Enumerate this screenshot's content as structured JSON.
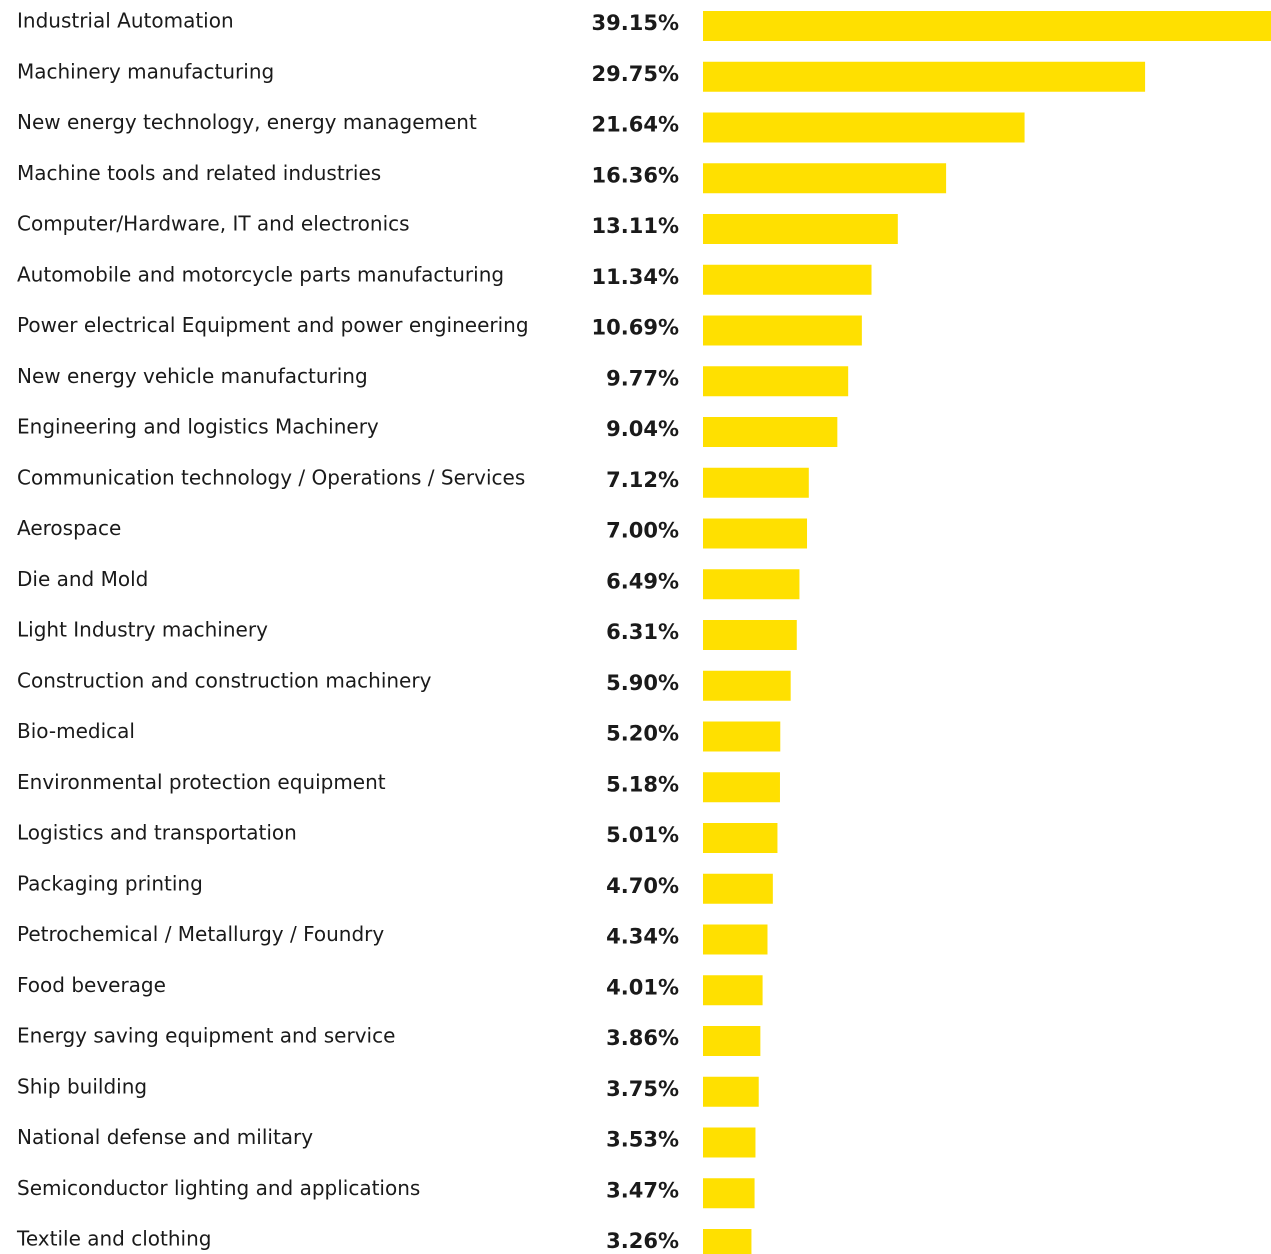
{
  "chart_data": {
    "type": "barh",
    "categories": [
      "Industrial Automation",
      "Machinery manufacturing",
      "New energy technology, energy management",
      "Machine tools and related industries",
      "Computer/Hardware, IT and electronics",
      "Automobile and motorcycle parts manufacturing",
      "Power electrical Equipment and power engineering",
      "New energy vehicle manufacturing",
      "Engineering and logistics Machinery",
      "Communication technology / Operations / Services",
      "Aerospace",
      "Die and Mold",
      "Light Industry machinery",
      "Construction and construction machinery",
      "Bio-medical",
      "Environmental protection equipment",
      "Logistics and transportation",
      "Packaging printing",
      "Petrochemical / Metallurgy / Foundry",
      "Food beverage",
      "Energy saving equipment and service",
      "Ship building",
      "National defense and military",
      "Semiconductor lighting and applications",
      "Textile and clothing"
    ],
    "values": [
      39.15,
      29.75,
      21.64,
      16.36,
      13.11,
      11.34,
      10.69,
      9.77,
      9.04,
      7.12,
      7.0,
      6.49,
      6.31,
      5.9,
      5.2,
      5.18,
      5.01,
      4.7,
      4.34,
      4.01,
      3.86,
      3.75,
      3.53,
      3.47,
      3.26
    ],
    "value_labels": [
      "39.15%",
      "29.75%",
      "21.64%",
      "16.36%",
      "13.11%",
      "11.34%",
      "10.69%",
      "9.77%",
      "9.04%",
      "7.12%",
      "7.00%",
      "6.49%",
      "6.31%",
      "5.90%",
      "5.20%",
      "5.18%",
      "5.01%",
      "4.70%",
      "4.34%",
      "4.01%",
      "3.86%",
      "3.75%",
      "3.53%",
      "3.47%",
      "3.26%"
    ],
    "color": "#ffe000"
  }
}
